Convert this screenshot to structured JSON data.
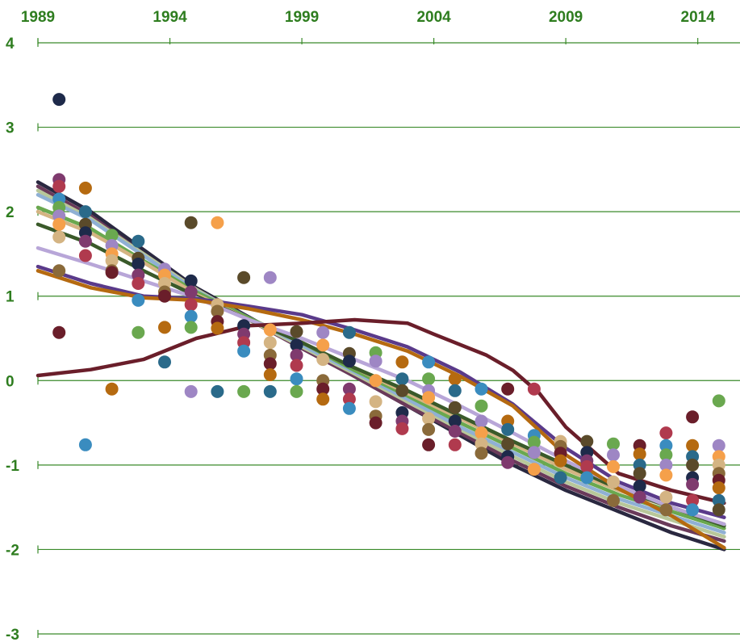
{
  "chart_data": {
    "type": "line",
    "title": "",
    "xlabel": "",
    "ylabel": "",
    "xlim": [
      1989,
      2015.6
    ],
    "ylim": [
      -3,
      4
    ],
    "x_ticks": [
      "1989",
      "1994",
      "1999",
      "2004",
      "2009",
      "2014"
    ],
    "y_ticks": [
      "4",
      "3",
      "2",
      "1",
      "0",
      "-1",
      "-2",
      "-3"
    ],
    "grid": "horizontal",
    "colors": {
      "axis_text": "#2e7d1f",
      "gridline": "#3a8a2a",
      "palette": [
        "#1e2a4a",
        "#7f3a6e",
        "#b03a4e",
        "#3a8cbf",
        "#6aa84f",
        "#9e86c4",
        "#f5a04a",
        "#d4b483",
        "#8a6a3a",
        "#6a1e2a",
        "#b56a10",
        "#2a6a8a",
        "#5a4a2a"
      ]
    },
    "series": [
      {
        "x": [
          1989,
          1991,
          1993,
          1995,
          1997,
          1999,
          2001,
          2003,
          2005,
          2007,
          2009,
          2011,
          2013,
          2015
        ],
        "values": [
          2.35,
          2.0,
          1.55,
          1.1,
          0.75,
          0.4,
          0.05,
          -0.3,
          -0.65,
          -1.0,
          -1.3,
          -1.55,
          -1.8,
          -2.0
        ]
      },
      {
        "x": [
          1989,
          1991,
          1993,
          1995,
          1997,
          1999,
          2001,
          2003,
          2005,
          2007,
          2009,
          2011,
          2013,
          2015
        ],
        "values": [
          2.3,
          1.95,
          1.5,
          1.08,
          0.72,
          0.38,
          0.05,
          -0.3,
          -0.62,
          -0.95,
          -1.25,
          -1.5,
          -1.72,
          -1.9
        ]
      },
      {
        "x": [
          1989,
          1991,
          1993,
          1995,
          1997,
          1999,
          2001,
          2003,
          2005,
          2007,
          2009,
          2011,
          2013,
          2015
        ],
        "values": [
          2.25,
          1.92,
          1.5,
          1.08,
          0.72,
          0.4,
          0.08,
          -0.25,
          -0.58,
          -0.9,
          -1.2,
          -1.45,
          -1.65,
          -1.85
        ]
      },
      {
        "x": [
          1989,
          1991,
          1993,
          1995,
          1997,
          1999,
          2001,
          2003,
          2005,
          2007,
          2009,
          2011,
          2013,
          2015
        ],
        "values": [
          2.2,
          1.9,
          1.48,
          1.06,
          0.74,
          0.42,
          0.1,
          -0.22,
          -0.55,
          -0.85,
          -1.15,
          -1.4,
          -1.6,
          -1.8
        ]
      },
      {
        "x": [
          1989,
          1991,
          1993,
          1995,
          1997,
          1999,
          2001,
          2003,
          2005,
          2007,
          2009,
          2011,
          2013,
          2015
        ],
        "values": [
          2.05,
          1.8,
          1.42,
          1.05,
          0.74,
          0.45,
          0.12,
          -0.18,
          -0.5,
          -0.8,
          -1.1,
          -1.35,
          -1.55,
          -1.75
        ]
      },
      {
        "x": [
          1989,
          1991,
          1993,
          1995,
          1997,
          1999,
          2001,
          2003,
          2005,
          2007,
          2009,
          2011,
          2013,
          2015
        ],
        "values": [
          2.0,
          1.75,
          1.4,
          1.02,
          0.72,
          0.45,
          0.15,
          -0.15,
          -0.45,
          -0.75,
          -1.05,
          -1.3,
          -1.5,
          -1.7
        ]
      },
      {
        "x": [
          1989,
          1991,
          1993,
          1995,
          1997,
          1999,
          2001,
          2003,
          2005,
          2007,
          2009,
          2011,
          2013,
          2015
        ],
        "values": [
          1.85,
          1.62,
          1.3,
          1.0,
          0.72,
          0.45,
          0.15,
          -0.12,
          -0.42,
          -0.72,
          -1.0,
          -1.28,
          -1.5,
          -1.72
        ]
      },
      {
        "x": [
          1989,
          1991,
          1993,
          1995,
          1997,
          1999,
          2001,
          2003,
          2005,
          2007,
          2009,
          2011,
          2013,
          2015
        ],
        "values": [
          1.57,
          1.38,
          1.18,
          0.98,
          0.72,
          0.5,
          0.25,
          0.0,
          -0.3,
          -0.62,
          -0.95,
          -1.25,
          -1.5,
          -1.7
        ]
      },
      {
        "x": [
          1989,
          1991,
          1993,
          1995,
          1997,
          1999,
          2001,
          2003,
          2005,
          2007,
          2009,
          2011,
          2013,
          2015
        ],
        "values": [
          1.35,
          1.15,
          1.0,
          0.97,
          0.88,
          0.78,
          0.6,
          0.4,
          0.1,
          -0.28,
          -0.8,
          -1.2,
          -1.45,
          -1.62
        ]
      },
      {
        "x": [
          1989,
          1991,
          1993,
          1995,
          1997,
          1999,
          2001,
          2003,
          2005,
          2007,
          2009,
          2011,
          2013,
          2015
        ],
        "values": [
          1.3,
          1.1,
          0.98,
          0.95,
          0.85,
          0.72,
          0.55,
          0.35,
          0.05,
          -0.3,
          -0.88,
          -1.28,
          -1.6,
          -1.98
        ]
      },
      {
        "x": [
          1989,
          1991,
          1993,
          1995,
          1997,
          1999,
          2001,
          2003,
          2004,
          2006,
          2007,
          2008,
          2009,
          2011,
          2013,
          2015
        ],
        "values": [
          0.06,
          0.13,
          0.25,
          0.5,
          0.65,
          0.68,
          0.72,
          0.68,
          0.55,
          0.3,
          0.12,
          -0.15,
          -0.55,
          -1.1,
          -1.3,
          -1.45
        ]
      }
    ],
    "scatter_points": [
      {
        "x": 1989.8,
        "y": 3.33
      },
      {
        "x": 1989.8,
        "y": 2.38
      },
      {
        "x": 1989.8,
        "y": 2.3
      },
      {
        "x": 1989.8,
        "y": 2.15
      },
      {
        "x": 1989.8,
        "y": 2.05
      },
      {
        "x": 1989.8,
        "y": 1.95
      },
      {
        "x": 1989.8,
        "y": 1.85
      },
      {
        "x": 1989.8,
        "y": 1.7
      },
      {
        "x": 1989.8,
        "y": 1.3
      },
      {
        "x": 1989.8,
        "y": 0.57
      },
      {
        "x": 1990.8,
        "y": 2.28
      },
      {
        "x": 1990.8,
        "y": 2.0
      },
      {
        "x": 1990.8,
        "y": 1.85
      },
      {
        "x": 1990.8,
        "y": 1.75
      },
      {
        "x": 1990.8,
        "y": 1.65
      },
      {
        "x": 1990.8,
        "y": 1.48
      },
      {
        "x": 1990.8,
        "y": -0.76
      },
      {
        "x": 1991.8,
        "y": 1.72
      },
      {
        "x": 1991.8,
        "y": 1.6
      },
      {
        "x": 1991.8,
        "y": 1.5
      },
      {
        "x": 1991.8,
        "y": 1.42
      },
      {
        "x": 1991.8,
        "y": 1.3
      },
      {
        "x": 1991.8,
        "y": 1.28
      },
      {
        "x": 1991.8,
        "y": -0.1
      },
      {
        "x": 1992.8,
        "y": 1.65
      },
      {
        "x": 1992.8,
        "y": 1.45
      },
      {
        "x": 1992.8,
        "y": 1.38
      },
      {
        "x": 1992.8,
        "y": 1.25
      },
      {
        "x": 1992.8,
        "y": 1.15
      },
      {
        "x": 1992.8,
        "y": 0.95
      },
      {
        "x": 1992.8,
        "y": 0.57
      },
      {
        "x": 1993.8,
        "y": 1.32
      },
      {
        "x": 1993.8,
        "y": 1.25
      },
      {
        "x": 1993.8,
        "y": 1.15
      },
      {
        "x": 1993.8,
        "y": 1.05
      },
      {
        "x": 1993.8,
        "y": 1.0
      },
      {
        "x": 1993.8,
        "y": 0.63
      },
      {
        "x": 1993.8,
        "y": 0.22
      },
      {
        "x": 1994.8,
        "y": 1.87
      },
      {
        "x": 1994.8,
        "y": 1.18
      },
      {
        "x": 1994.8,
        "y": 1.05
      },
      {
        "x": 1994.8,
        "y": 0.9
      },
      {
        "x": 1994.8,
        "y": 0.76
      },
      {
        "x": 1994.8,
        "y": 0.63
      },
      {
        "x": 1994.8,
        "y": -0.13
      },
      {
        "x": 1995.8,
        "y": 1.87
      },
      {
        "x": 1995.8,
        "y": 0.9
      },
      {
        "x": 1995.8,
        "y": 0.82
      },
      {
        "x": 1995.8,
        "y": 0.7
      },
      {
        "x": 1995.8,
        "y": 0.62
      },
      {
        "x": 1995.8,
        "y": -0.13
      },
      {
        "x": 1996.8,
        "y": 1.22
      },
      {
        "x": 1996.8,
        "y": 0.65
      },
      {
        "x": 1996.8,
        "y": 0.55
      },
      {
        "x": 1996.8,
        "y": 0.45
      },
      {
        "x": 1996.8,
        "y": 0.35
      },
      {
        "x": 1996.8,
        "y": -0.13
      },
      {
        "x": 1997.8,
        "y": 1.22
      },
      {
        "x": 1997.8,
        "y": 0.6
      },
      {
        "x": 1997.8,
        "y": 0.45
      },
      {
        "x": 1997.8,
        "y": 0.3
      },
      {
        "x": 1997.8,
        "y": 0.2
      },
      {
        "x": 1997.8,
        "y": 0.07
      },
      {
        "x": 1997.8,
        "y": -0.13
      },
      {
        "x": 1998.8,
        "y": 0.58
      },
      {
        "x": 1998.8,
        "y": 0.42
      },
      {
        "x": 1998.8,
        "y": 0.3
      },
      {
        "x": 1998.8,
        "y": 0.18
      },
      {
        "x": 1998.8,
        "y": 0.02
      },
      {
        "x": 1998.8,
        "y": -0.13
      },
      {
        "x": 1999.8,
        "y": 0.57
      },
      {
        "x": 1999.8,
        "y": 0.42
      },
      {
        "x": 1999.8,
        "y": 0.25
      },
      {
        "x": 1999.8,
        "y": 0.0
      },
      {
        "x": 1999.8,
        "y": -0.1
      },
      {
        "x": 1999.8,
        "y": -0.22
      },
      {
        "x": 2000.8,
        "y": 0.57
      },
      {
        "x": 2000.8,
        "y": 0.32
      },
      {
        "x": 2000.8,
        "y": 0.23
      },
      {
        "x": 2000.8,
        "y": -0.1
      },
      {
        "x": 2000.8,
        "y": -0.22
      },
      {
        "x": 2000.8,
        "y": -0.33
      },
      {
        "x": 2001.8,
        "y": 0.33
      },
      {
        "x": 2001.8,
        "y": 0.23
      },
      {
        "x": 2001.8,
        "y": 0.0
      },
      {
        "x": 2001.8,
        "y": -0.25
      },
      {
        "x": 2001.8,
        "y": -0.42
      },
      {
        "x": 2001.8,
        "y": -0.5
      },
      {
        "x": 2002.8,
        "y": 0.22
      },
      {
        "x": 2002.8,
        "y": 0.02
      },
      {
        "x": 2002.8,
        "y": -0.12
      },
      {
        "x": 2002.8,
        "y": -0.38
      },
      {
        "x": 2002.8,
        "y": -0.48
      },
      {
        "x": 2002.8,
        "y": -0.57
      },
      {
        "x": 2003.8,
        "y": 0.22
      },
      {
        "x": 2003.8,
        "y": 0.02
      },
      {
        "x": 2003.8,
        "y": -0.12
      },
      {
        "x": 2003.8,
        "y": -0.2
      },
      {
        "x": 2003.8,
        "y": -0.45
      },
      {
        "x": 2003.8,
        "y": -0.58
      },
      {
        "x": 2003.8,
        "y": -0.76
      },
      {
        "x": 2004.8,
        "y": 0.02
      },
      {
        "x": 2004.8,
        "y": -0.12
      },
      {
        "x": 2004.8,
        "y": -0.32
      },
      {
        "x": 2004.8,
        "y": -0.48
      },
      {
        "x": 2004.8,
        "y": -0.6
      },
      {
        "x": 2004.8,
        "y": -0.76
      },
      {
        "x": 2005.8,
        "y": -0.1
      },
      {
        "x": 2005.8,
        "y": -0.3
      },
      {
        "x": 2005.8,
        "y": -0.48
      },
      {
        "x": 2005.8,
        "y": -0.62
      },
      {
        "x": 2005.8,
        "y": -0.75
      },
      {
        "x": 2005.8,
        "y": -0.86
      },
      {
        "x": 2006.8,
        "y": -0.1
      },
      {
        "x": 2006.8,
        "y": -0.48
      },
      {
        "x": 2006.8,
        "y": -0.58
      },
      {
        "x": 2006.8,
        "y": -0.75
      },
      {
        "x": 2006.8,
        "y": -0.9
      },
      {
        "x": 2006.8,
        "y": -0.97
      },
      {
        "x": 2007.8,
        "y": -0.1
      },
      {
        "x": 2007.8,
        "y": -0.65
      },
      {
        "x": 2007.8,
        "y": -0.73
      },
      {
        "x": 2007.8,
        "y": -0.85
      },
      {
        "x": 2007.8,
        "y": -1.05
      },
      {
        "x": 2008.8,
        "y": -0.72
      },
      {
        "x": 2008.8,
        "y": -0.78
      },
      {
        "x": 2008.8,
        "y": -0.86
      },
      {
        "x": 2008.8,
        "y": -0.95
      },
      {
        "x": 2008.8,
        "y": -1.15
      },
      {
        "x": 2009.8,
        "y": -0.72
      },
      {
        "x": 2009.8,
        "y": -0.85
      },
      {
        "x": 2009.8,
        "y": -0.95
      },
      {
        "x": 2009.8,
        "y": -1.02
      },
      {
        "x": 2009.8,
        "y": -1.15
      },
      {
        "x": 2010.8,
        "y": -0.75
      },
      {
        "x": 2010.8,
        "y": -0.88
      },
      {
        "x": 2010.8,
        "y": -1.02
      },
      {
        "x": 2010.8,
        "y": -1.2
      },
      {
        "x": 2010.8,
        "y": -1.42
      },
      {
        "x": 2011.8,
        "y": -0.77
      },
      {
        "x": 2011.8,
        "y": -0.87
      },
      {
        "x": 2011.8,
        "y": -1.0
      },
      {
        "x": 2011.8,
        "y": -1.1
      },
      {
        "x": 2011.8,
        "y": -1.25
      },
      {
        "x": 2011.8,
        "y": -1.38
      },
      {
        "x": 2012.8,
        "y": -0.62
      },
      {
        "x": 2012.8,
        "y": -0.77
      },
      {
        "x": 2012.8,
        "y": -0.88
      },
      {
        "x": 2012.8,
        "y": -1.0
      },
      {
        "x": 2012.8,
        "y": -1.12
      },
      {
        "x": 2012.8,
        "y": -1.38
      },
      {
        "x": 2012.8,
        "y": -1.53
      },
      {
        "x": 2013.8,
        "y": -0.43
      },
      {
        "x": 2013.8,
        "y": -0.77
      },
      {
        "x": 2013.8,
        "y": -0.9
      },
      {
        "x": 2013.8,
        "y": -1.0
      },
      {
        "x": 2013.8,
        "y": -1.15
      },
      {
        "x": 2013.8,
        "y": -1.23
      },
      {
        "x": 2013.8,
        "y": -1.42
      },
      {
        "x": 2013.8,
        "y": -1.53
      },
      {
        "x": 2014.8,
        "y": -0.24
      },
      {
        "x": 2014.8,
        "y": -0.77
      },
      {
        "x": 2014.8,
        "y": -0.9
      },
      {
        "x": 2014.8,
        "y": -1.0
      },
      {
        "x": 2014.8,
        "y": -1.1
      },
      {
        "x": 2014.8,
        "y": -1.18
      },
      {
        "x": 2014.8,
        "y": -1.27
      },
      {
        "x": 2014.8,
        "y": -1.42
      },
      {
        "x": 2014.8,
        "y": -1.53
      }
    ]
  }
}
